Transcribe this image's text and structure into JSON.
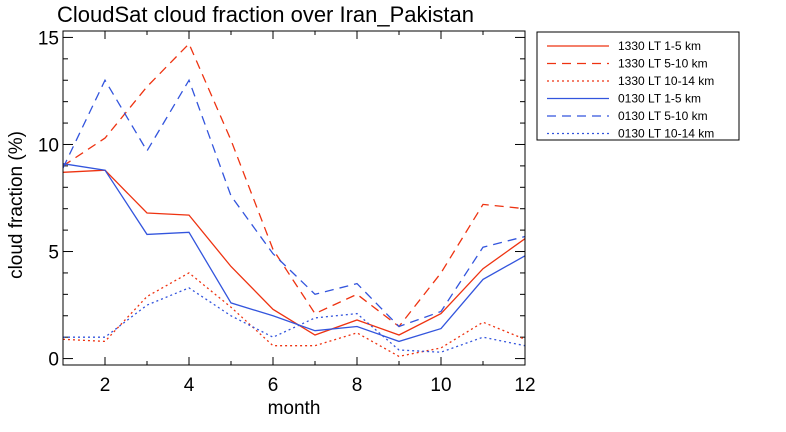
{
  "chart_data": {
    "type": "line",
    "title": "CloudSat cloud fraction over Iran_Pakistan",
    "xlabel": "month",
    "ylabel": "cloud fraction (%)",
    "xlim": [
      1,
      12
    ],
    "ylim": [
      -0.3,
      15.3
    ],
    "x_ticks": [
      2,
      4,
      6,
      8,
      10,
      12
    ],
    "y_ticks": [
      0,
      5,
      10,
      15
    ],
    "legend_position": "top-right, outside plot",
    "x": [
      1,
      2,
      3,
      4,
      5,
      6,
      7,
      8,
      9,
      10,
      11,
      12
    ],
    "series": [
      {
        "name": "1330 LT 1-5 km",
        "color": "#ee3311",
        "dash": "solid",
        "values": [
          8.7,
          8.8,
          6.8,
          6.7,
          4.3,
          2.3,
          1.1,
          1.8,
          1.1,
          2.1,
          4.2,
          5.6
        ]
      },
      {
        "name": "1330 LT 5-10 km",
        "color": "#ee3311",
        "dash": "dashed",
        "values": [
          9.0,
          10.3,
          12.7,
          14.7,
          10.2,
          5.1,
          2.1,
          3.0,
          1.5,
          4.0,
          7.2,
          7.0
        ]
      },
      {
        "name": "1330 LT 10-14 km",
        "color": "#ee3311",
        "dash": "dotted",
        "values": [
          0.9,
          0.8,
          2.9,
          4.0,
          2.4,
          0.6,
          0.6,
          1.2,
          0.1,
          0.5,
          1.7,
          0.9
        ]
      },
      {
        "name": "0130 LT 1-5 km",
        "color": "#3355dd",
        "dash": "solid",
        "values": [
          9.1,
          8.8,
          5.8,
          5.9,
          2.6,
          2.0,
          1.3,
          1.5,
          0.8,
          1.4,
          3.7,
          4.8
        ]
      },
      {
        "name": "0130 LT 5-10 km",
        "color": "#3355dd",
        "dash": "dashed",
        "values": [
          8.9,
          13.0,
          9.7,
          13.0,
          7.6,
          4.9,
          3.0,
          3.5,
          1.5,
          2.2,
          5.2,
          5.7
        ]
      },
      {
        "name": "0130 LT 10-14 km",
        "color": "#3355dd",
        "dash": "dotted",
        "values": [
          1.0,
          1.0,
          2.5,
          3.3,
          2.0,
          1.0,
          1.9,
          2.1,
          0.4,
          0.3,
          1.0,
          0.6
        ]
      }
    ]
  }
}
